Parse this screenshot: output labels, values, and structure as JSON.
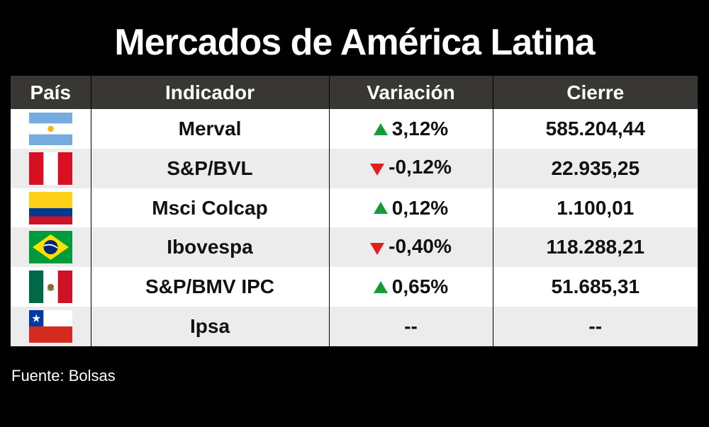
{
  "title": "Mercados de América Latina",
  "columns": {
    "country": "País",
    "indicator": "Indicador",
    "change": "Variación",
    "close": "Cierre"
  },
  "rows": [
    {
      "country_icon": "argentina-flag-icon",
      "indicator": "Merval",
      "change": "3,12%",
      "direction": "up",
      "close": "585.204,44"
    },
    {
      "country_icon": "peru-flag-icon",
      "indicator": "S&P/BVL",
      "change": "-0,12%",
      "direction": "down",
      "close": "22.935,25"
    },
    {
      "country_icon": "colombia-flag-icon",
      "indicator": "Msci Colcap",
      "change": "0,12%",
      "direction": "up",
      "close": "1.100,01"
    },
    {
      "country_icon": "brazil-flag-icon",
      "indicator": "Ibovespa",
      "change": "-0,40%",
      "direction": "down",
      "close": "118.288,21"
    },
    {
      "country_icon": "mexico-flag-icon",
      "indicator": "S&P/BMV IPC",
      "change": "0,65%",
      "direction": "up",
      "close": "51.685,31"
    },
    {
      "country_icon": "chile-flag-icon",
      "indicator": "Ipsa",
      "change": "--",
      "direction": "none",
      "close": "--"
    }
  ],
  "source": "Fuente: Bolsas",
  "colors": {
    "background": "#000000",
    "header_bg": "#393734",
    "row_odd": "#ffffff",
    "row_even": "#ececec",
    "up": "#169b3a",
    "down": "#e02020"
  }
}
